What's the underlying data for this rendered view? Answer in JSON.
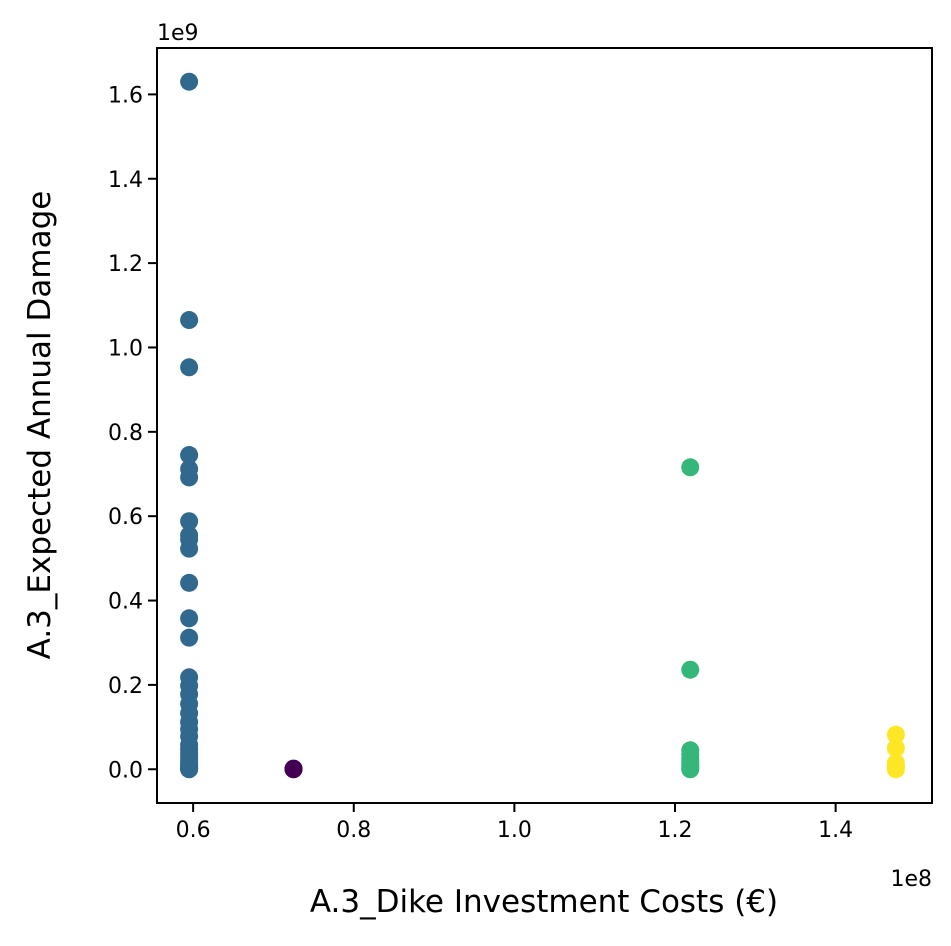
{
  "chart_data": {
    "type": "scatter",
    "title": "",
    "xlabel": "A.3_Dike Investment Costs (€)",
    "ylabel": "A.3_Expected Annual Damage",
    "x_offset_label": "1e8",
    "y_offset_label": "1e9",
    "xlim": [
      55500000,
      152000000
    ],
    "ylim": [
      -80000000,
      1710000000
    ],
    "x_ticks": [
      60000000,
      80000000,
      100000000,
      120000000,
      140000000
    ],
    "x_tick_labels": [
      "0.6",
      "0.8",
      "1.0",
      "1.2",
      "1.4"
    ],
    "y_ticks": [
      0,
      200000000,
      400000000,
      600000000,
      800000000,
      1000000000,
      1200000000,
      1400000000,
      1600000000
    ],
    "y_tick_labels": [
      "0.0",
      "0.2",
      "0.4",
      "0.6",
      "0.8",
      "1.0",
      "1.2",
      "1.4",
      "1.6"
    ],
    "grid": false,
    "legend": "none",
    "series": [
      {
        "color": "#31688e",
        "x": [
          59500000,
          59500000,
          59500000,
          59500000,
          59500000,
          59500000,
          59500000,
          59500000,
          59500000,
          59500000,
          59500000,
          59500000,
          59500000,
          59500000,
          59500000,
          59500000,
          59500000,
          59500000,
          59500000,
          59500000,
          59500000,
          59500000,
          59500000,
          59500000,
          59500000,
          59500000,
          59500000,
          59500000,
          59500000,
          59500000,
          59500000,
          59500000,
          59500000,
          59500000
        ],
        "y": [
          1630000000,
          1065000000,
          953000000,
          745000000,
          712000000,
          692000000,
          588000000,
          555000000,
          545000000,
          523000000,
          442000000,
          358000000,
          312000000,
          218000000,
          198000000,
          178000000,
          155000000,
          133000000,
          112000000,
          95000000,
          78000000,
          58000000,
          48000000,
          40000000,
          32000000,
          25000000,
          18000000,
          12000000,
          8000000,
          5000000,
          3000000,
          2000000,
          1000000,
          0
        ]
      },
      {
        "color": "#440154",
        "x": [
          72500000,
          72500000,
          72500000
        ],
        "y": [
          1500000,
          500000,
          0
        ]
      },
      {
        "color": "#35b779",
        "x": [
          121900000,
          121900000,
          121900000,
          121900000,
          121900000,
          121900000,
          121900000,
          121900000,
          121900000,
          121900000
        ],
        "y": [
          716000000,
          236000000,
          45000000,
          35000000,
          25000000,
          17000000,
          10000000,
          5000000,
          2000000,
          0
        ]
      },
      {
        "color": "#fde725",
        "x": [
          147500000,
          147500000,
          147500000,
          147500000,
          147500000,
          147500000
        ],
        "y": [
          82000000,
          50000000,
          15000000,
          8000000,
          3000000,
          0
        ]
      }
    ]
  }
}
